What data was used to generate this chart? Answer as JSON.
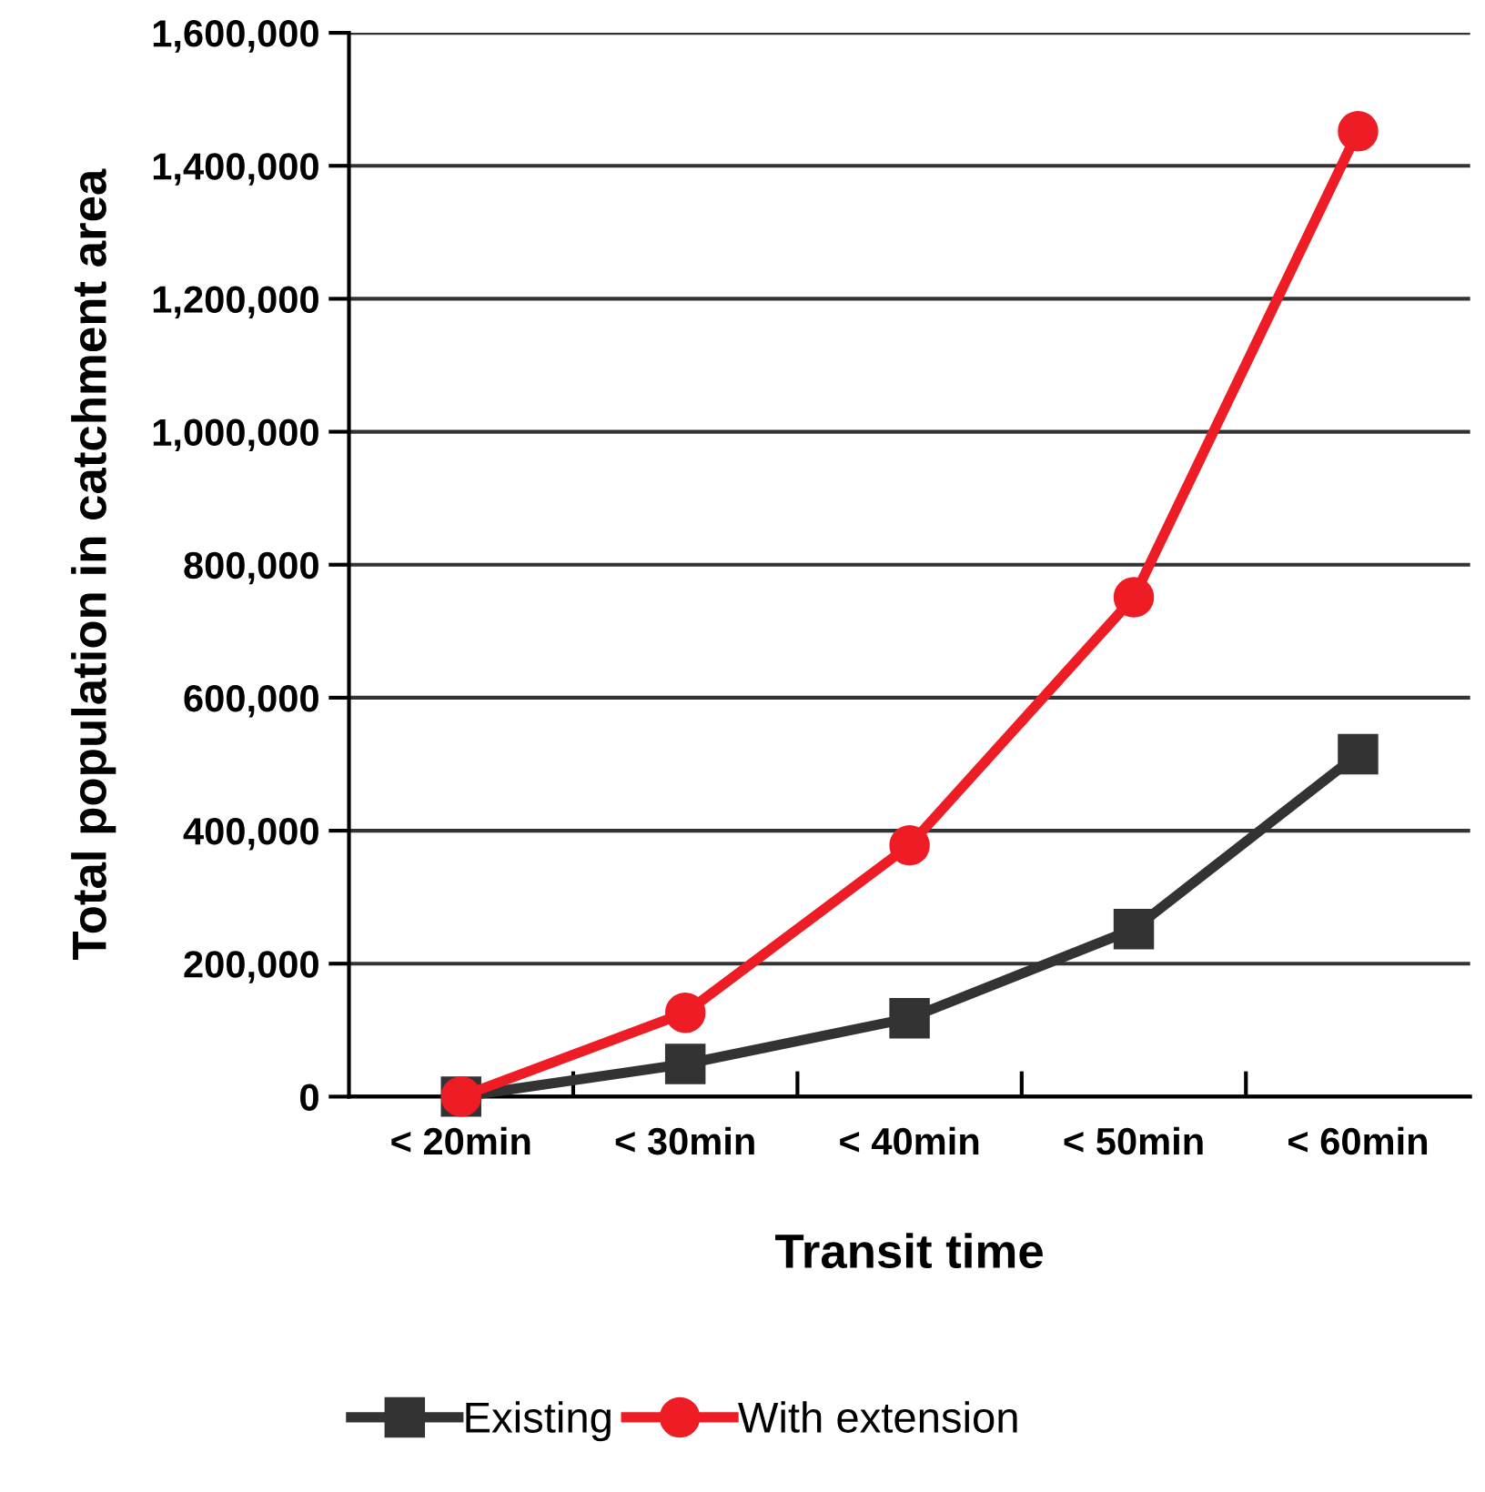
{
  "chart_data": {
    "type": "line",
    "xlabel": "Transit time",
    "ylabel": "Total population in catchment area",
    "categories": [
      "< 20min",
      "< 30min",
      "< 40min",
      "< 50min",
      "< 60min"
    ],
    "series": [
      {
        "name": "Existing",
        "color": "#333333",
        "marker": "square",
        "values": [
          0,
          49000,
          118000,
          252000,
          515000
        ]
      },
      {
        "name": "With extension",
        "color": "#ee1c25",
        "marker": "circle",
        "values": [
          0,
          126000,
          378000,
          751000,
          1452000
        ]
      }
    ],
    "ylim": [
      0,
      1600000
    ],
    "yticks": [
      {
        "value": 0,
        "label": "0"
      },
      {
        "value": 200000,
        "label": "200,000"
      },
      {
        "value": 400000,
        "label": "400,000"
      },
      {
        "value": 600000,
        "label": "600,000"
      },
      {
        "value": 800000,
        "label": "800,000"
      },
      {
        "value": 1000000,
        "label": "1,000,000"
      },
      {
        "value": 1200000,
        "label": "1,200,000"
      },
      {
        "value": 1400000,
        "label": "1,400,000"
      },
      {
        "value": 1600000,
        "label": "1,600,000"
      }
    ],
    "grid": "y",
    "legend": "bottom",
    "line_style": "solid"
  }
}
